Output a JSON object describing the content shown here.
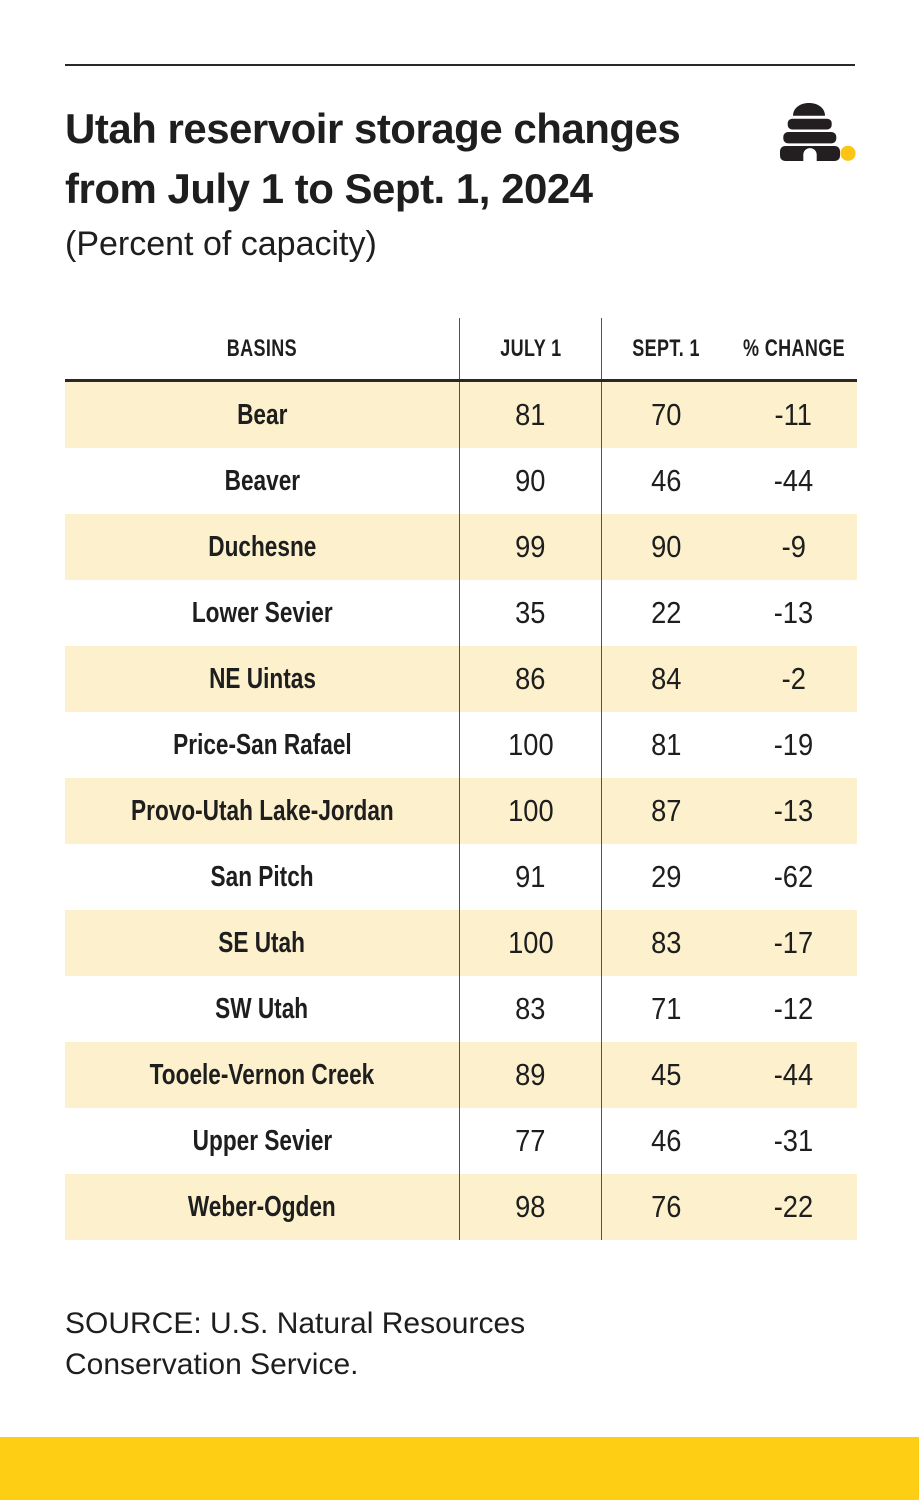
{
  "colors": {
    "ink": "#1e1e1e",
    "row_cream": "#fcf0cd",
    "accent_yellow": "#fdce13",
    "rule_dark": "#2a2724",
    "grid_line": "#55514b",
    "logo_hive": "#231f20",
    "logo_dot": "#fcc515"
  },
  "logo": {
    "name": "beehive-logo"
  },
  "chart_data": {
    "type": "table",
    "title_lines": [
      "Utah reservoir storage changes",
      "from July 1 to Sept. 1, 2024"
    ],
    "title": "Utah reservoir storage changes from July 1 to Sept. 1, 2024",
    "subtitle": "(Percent of capacity)",
    "columns": [
      "BASINS",
      "JULY 1",
      "SEPT. 1",
      "% CHANGE"
    ],
    "rows": [
      {
        "basin": "Bear",
        "july1": "81",
        "sept1": "70",
        "change": "-11"
      },
      {
        "basin": "Beaver",
        "july1": "90",
        "sept1": "46",
        "change": "-44"
      },
      {
        "basin": "Duchesne",
        "july1": "99",
        "sept1": "90",
        "change": "-9"
      },
      {
        "basin": "Lower Sevier",
        "july1": "35",
        "sept1": "22",
        "change": "-13"
      },
      {
        "basin": "NE Uintas",
        "july1": "86",
        "sept1": "84",
        "change": "-2"
      },
      {
        "basin": "Price-San Rafael",
        "july1": "100",
        "sept1": "81",
        "change": "-19"
      },
      {
        "basin": "Provo-Utah Lake-Jordan",
        "july1": "100",
        "sept1": "87",
        "change": "-13"
      },
      {
        "basin": "San Pitch",
        "july1": "91",
        "sept1": "29",
        "change": "-62"
      },
      {
        "basin": "SE Utah",
        "july1": "100",
        "sept1": "83",
        "change": "-17"
      },
      {
        "basin": "SW Utah",
        "july1": "83",
        "sept1": "71",
        "change": "-12"
      },
      {
        "basin": "Tooele-Vernon Creek",
        "july1": "89",
        "sept1": "45",
        "change": "-44"
      },
      {
        "basin": "Upper Sevier",
        "july1": "77",
        "sept1": "46",
        "change": "-31"
      },
      {
        "basin": "Weber-Ogden",
        "july1": "98",
        "sept1": "76",
        "change": "-22"
      }
    ],
    "source_lines": [
      "SOURCE: U.S. Natural Resources",
      "Conservation Service."
    ],
    "layout_hints": {
      "row_striping": "alternating cream starting with first data row",
      "grid": "vertical rules after BASINS and JULY 1 columns"
    }
  }
}
